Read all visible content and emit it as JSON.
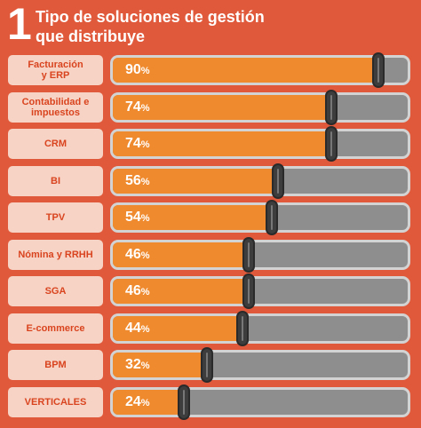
{
  "header": {
    "number": "1",
    "title_line1": "Tipo de soluciones de gestión",
    "title_line2": "que distribuye"
  },
  "chart_data": {
    "type": "bar",
    "orientation": "horizontal",
    "title": "Tipo de soluciones de gestión que distribuye",
    "categories": [
      "Facturación\ny ERP",
      "Contabilidad e\nimpuestos",
      "CRM",
      "BI",
      "TPV",
      "Nómina y RRHH",
      "SGA",
      "E-commerce",
      "BPM",
      "VERTICALES"
    ],
    "values": [
      90,
      74,
      74,
      56,
      54,
      46,
      46,
      44,
      32,
      24
    ],
    "unit": "%",
    "xlim": [
      0,
      100
    ],
    "colors": {
      "fill": "#ef8a2e",
      "track": "#8e8e8e",
      "label_bg": "#f7d3c5",
      "label_text": "#d9441f",
      "background": "#e0593a"
    }
  }
}
